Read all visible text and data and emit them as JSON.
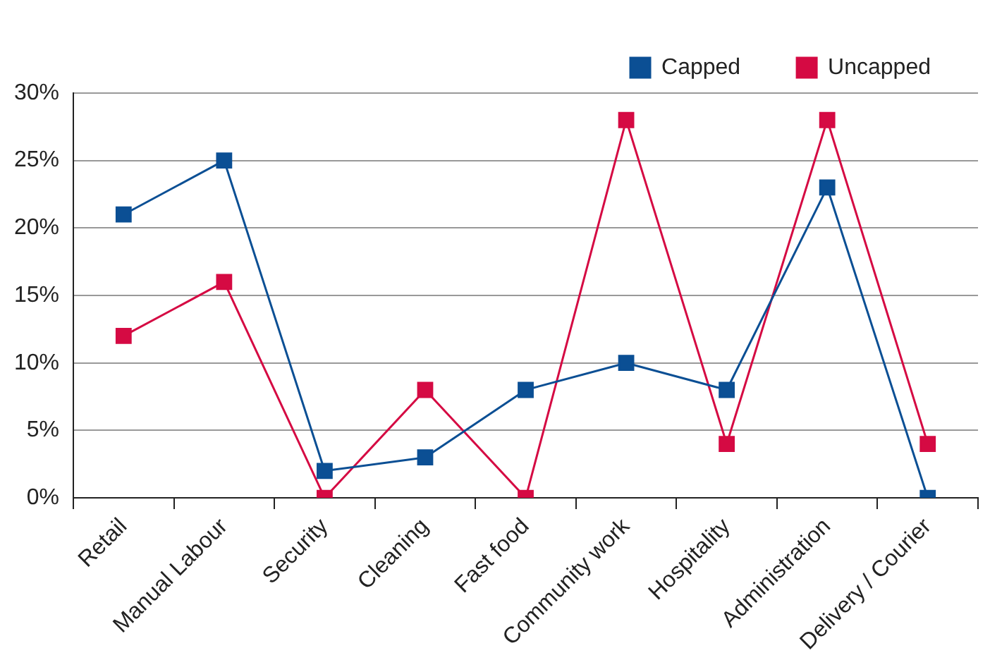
{
  "chart_data": {
    "type": "line",
    "categories": [
      "Retail",
      "Manual Labour",
      "Security",
      "Cleaning",
      "Fast food",
      "Community work",
      "Hospitality",
      "Administration",
      "Delivery / Courier"
    ],
    "series": [
      {
        "name": "Capped",
        "color": "#0b4f94",
        "values": [
          21,
          25,
          2,
          3,
          8,
          10,
          8,
          23,
          0
        ]
      },
      {
        "name": "Uncapped",
        "color": "#d50a43",
        "values": [
          12,
          16,
          0,
          8,
          0,
          28,
          4,
          28,
          4
        ]
      }
    ],
    "ylim": [
      0,
      30
    ],
    "yticks": [
      {
        "value": 0,
        "label": "0%"
      },
      {
        "value": 5,
        "label": "5%"
      },
      {
        "value": 10,
        "label": "10%"
      },
      {
        "value": 15,
        "label": "15%"
      },
      {
        "value": 20,
        "label": "20%"
      },
      {
        "value": 25,
        "label": "25%"
      },
      {
        "value": 30,
        "label": "30%"
      }
    ],
    "grid": "y",
    "legend": "top right",
    "marker": "square",
    "line_style": "solid"
  }
}
